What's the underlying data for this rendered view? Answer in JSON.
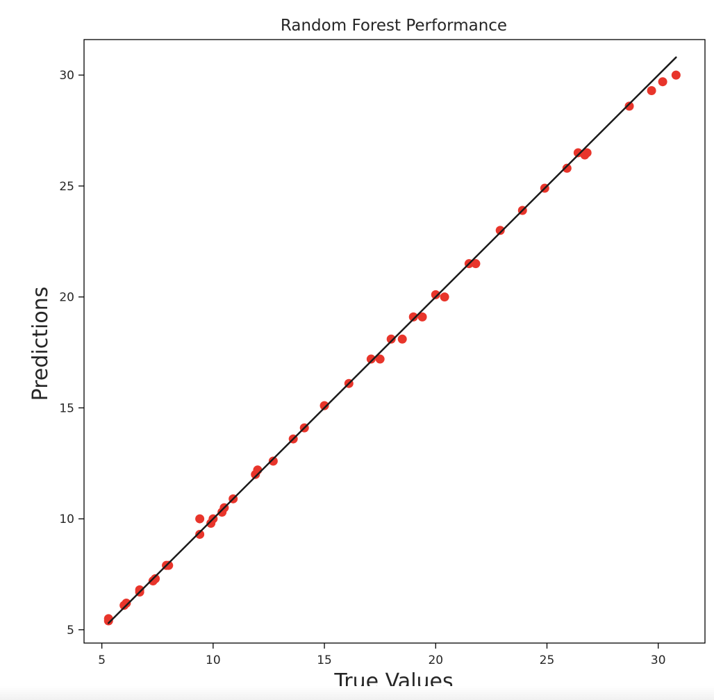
{
  "colors": {
    "point": "#e8352b",
    "line": "#1a1a1a",
    "axes": "#000000",
    "text": "#262626"
  },
  "chart_data": {
    "type": "scatter",
    "title": "Random Forest Performance",
    "xlabel": "True Values",
    "ylabel": "Predictions",
    "xlim": [
      4.2,
      32.1
    ],
    "ylim": [
      4.4,
      31.6
    ],
    "xticks": [
      5,
      10,
      15,
      20,
      25,
      30
    ],
    "yticks": [
      5,
      10,
      15,
      20,
      25,
      30
    ],
    "grid": false,
    "legend": "none",
    "reference_line": {
      "x": [
        5.3,
        30.8
      ],
      "y": [
        5.3,
        30.8
      ]
    },
    "series": [
      {
        "x": [
          5.3,
          5.3,
          6.0,
          6.1,
          6.7,
          6.7,
          7.3,
          7.4,
          7.9,
          8.0,
          9.4,
          9.4,
          9.9,
          10.0,
          10.4,
          10.5,
          10.9,
          11.9,
          12.0,
          12.7,
          13.6,
          14.1,
          15.0,
          16.1,
          17.1,
          17.5,
          18.0,
          18.5,
          19.0,
          19.4,
          20.0,
          20.4,
          21.5,
          21.8,
          22.9,
          23.9,
          24.9,
          25.9,
          26.4,
          26.7,
          26.8,
          28.7,
          29.7,
          30.2,
          30.8
        ],
        "y": [
          5.5,
          5.4,
          6.1,
          6.2,
          6.8,
          6.7,
          7.2,
          7.3,
          7.9,
          7.9,
          9.3,
          10.0,
          9.8,
          10.0,
          10.3,
          10.5,
          10.9,
          12.0,
          12.2,
          12.6,
          13.6,
          14.1,
          15.1,
          16.1,
          17.2,
          17.2,
          18.1,
          18.1,
          19.1,
          19.1,
          20.1,
          20.0,
          21.5,
          21.5,
          23.0,
          23.9,
          24.9,
          25.8,
          26.5,
          26.4,
          26.5,
          28.6,
          29.3,
          29.7,
          30.0
        ]
      }
    ]
  }
}
